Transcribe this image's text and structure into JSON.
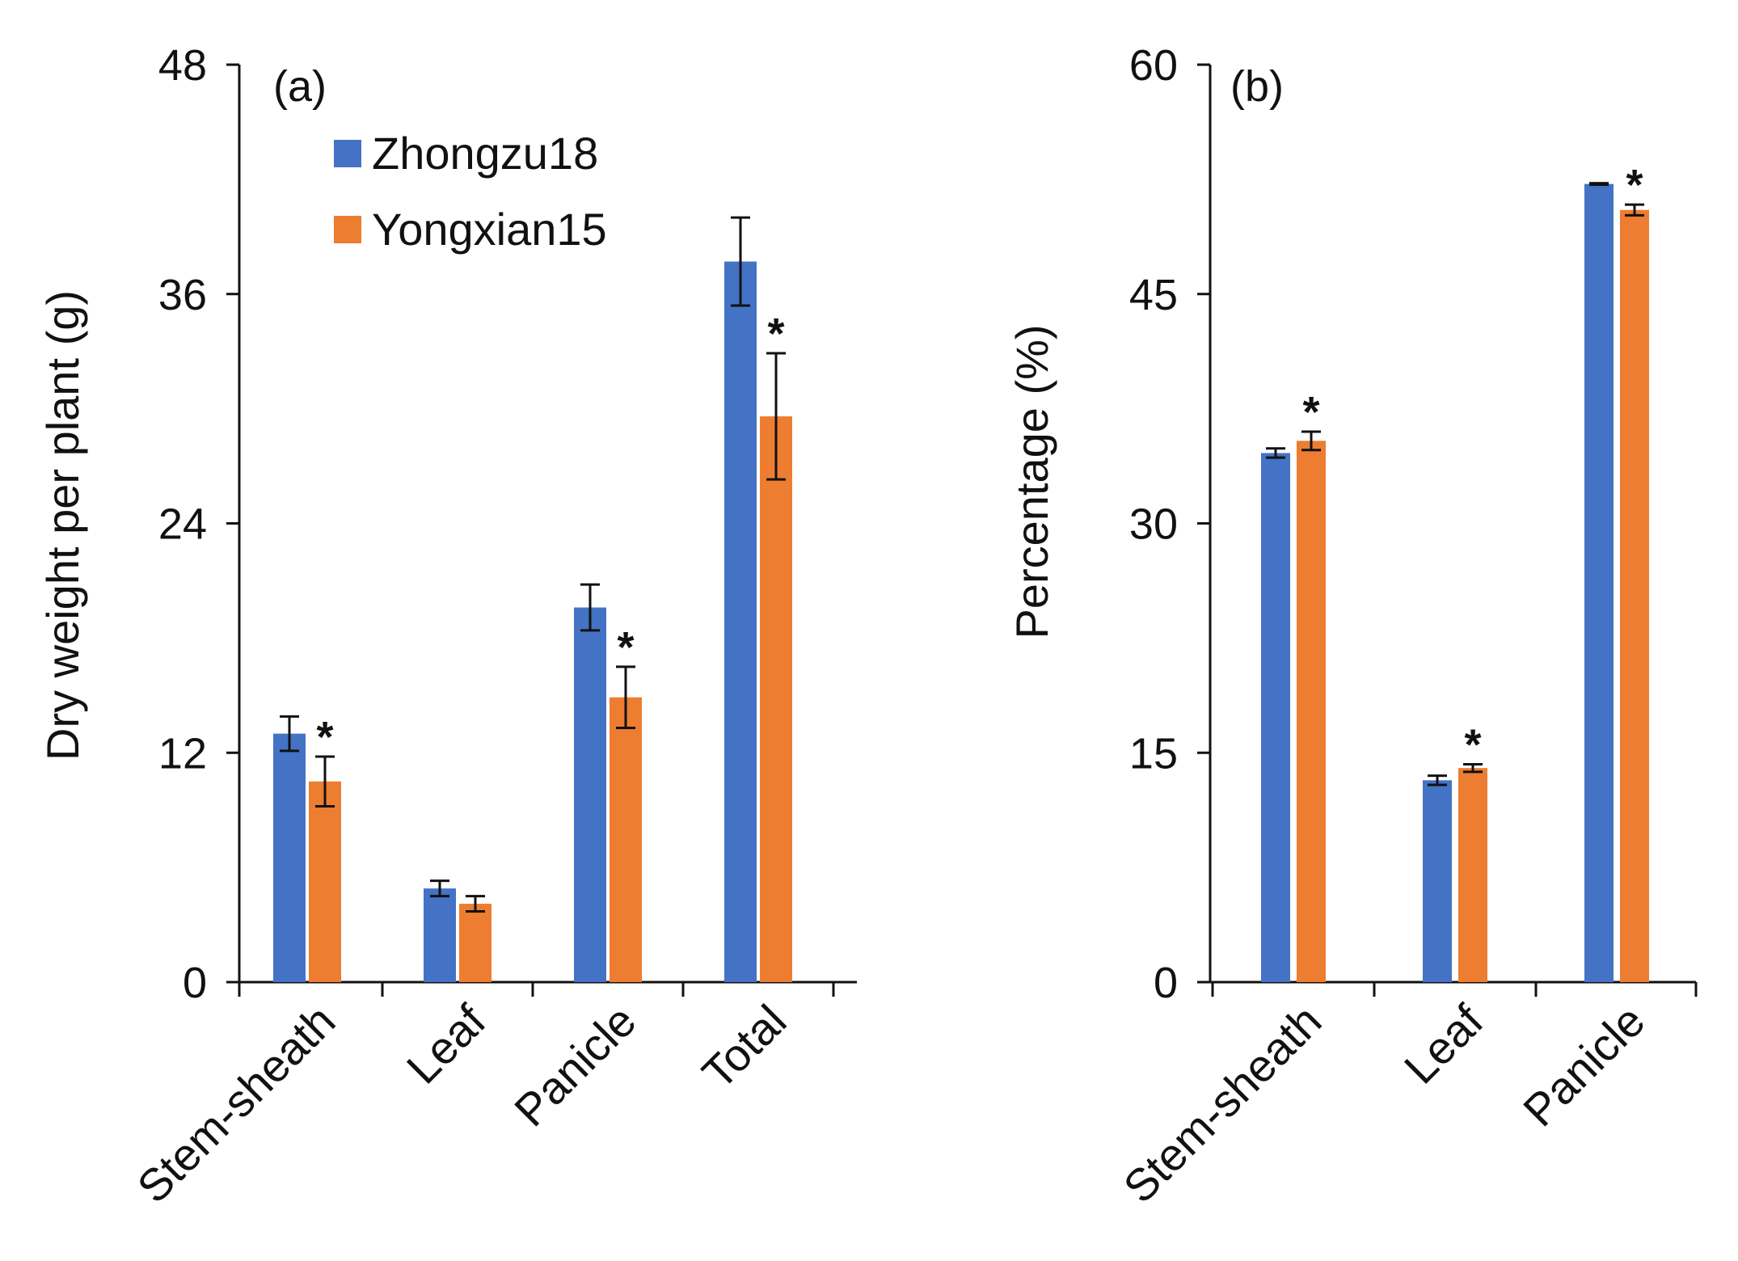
{
  "chart_data": [
    {
      "type": "bar",
      "panel_label": "(a)",
      "title": "",
      "xlabel": "",
      "ylabel": "Dry weight per plant (g)",
      "ylim": [
        0,
        48
      ],
      "yticks": [
        0,
        12,
        24,
        36,
        48
      ],
      "yticks_text": [
        "0",
        "12",
        "24",
        "36",
        "48"
      ],
      "grid": false,
      "legend_position": "top-left",
      "categories": [
        "Stem-sheath",
        "Leaf",
        "Panicle",
        "Total"
      ],
      "series": [
        {
          "name": "Zhongzu18",
          "color": "#4472C4",
          "values": [
            13.0,
            4.9,
            19.6,
            37.7
          ],
          "errors": [
            0.9,
            0.4,
            1.2,
            2.3
          ],
          "significance": [
            "",
            "",
            "",
            ""
          ]
        },
        {
          "name": "Yongxian15",
          "color": "#ED7D31",
          "values": [
            10.5,
            4.1,
            14.9,
            29.6
          ],
          "errors": [
            1.3,
            0.4,
            1.6,
            3.3
          ],
          "significance": [
            "*",
            "",
            "*",
            "*"
          ]
        }
      ]
    },
    {
      "type": "bar",
      "panel_label": "(b)",
      "title": "",
      "xlabel": "",
      "ylabel": "Percentage (%)",
      "ylim": [
        0,
        60
      ],
      "yticks": [
        0,
        15,
        30,
        45,
        60
      ],
      "yticks_text": [
        "0",
        "15",
        "30",
        "45",
        "60"
      ],
      "grid": false,
      "categories": [
        "Stem-sheath",
        "Leaf",
        "Panicle"
      ],
      "series": [
        {
          "name": "Zhongzu18",
          "color": "#4472C4",
          "values": [
            34.6,
            13.2,
            52.2
          ],
          "errors": [
            0.3,
            0.3,
            0.05
          ],
          "significance": [
            "",
            "",
            ""
          ]
        },
        {
          "name": "Yongxian15",
          "color": "#ED7D31",
          "values": [
            35.4,
            14.0,
            50.5
          ],
          "errors": [
            0.6,
            0.25,
            0.35
          ],
          "significance": [
            "*",
            "*",
            "*"
          ]
        }
      ]
    }
  ]
}
